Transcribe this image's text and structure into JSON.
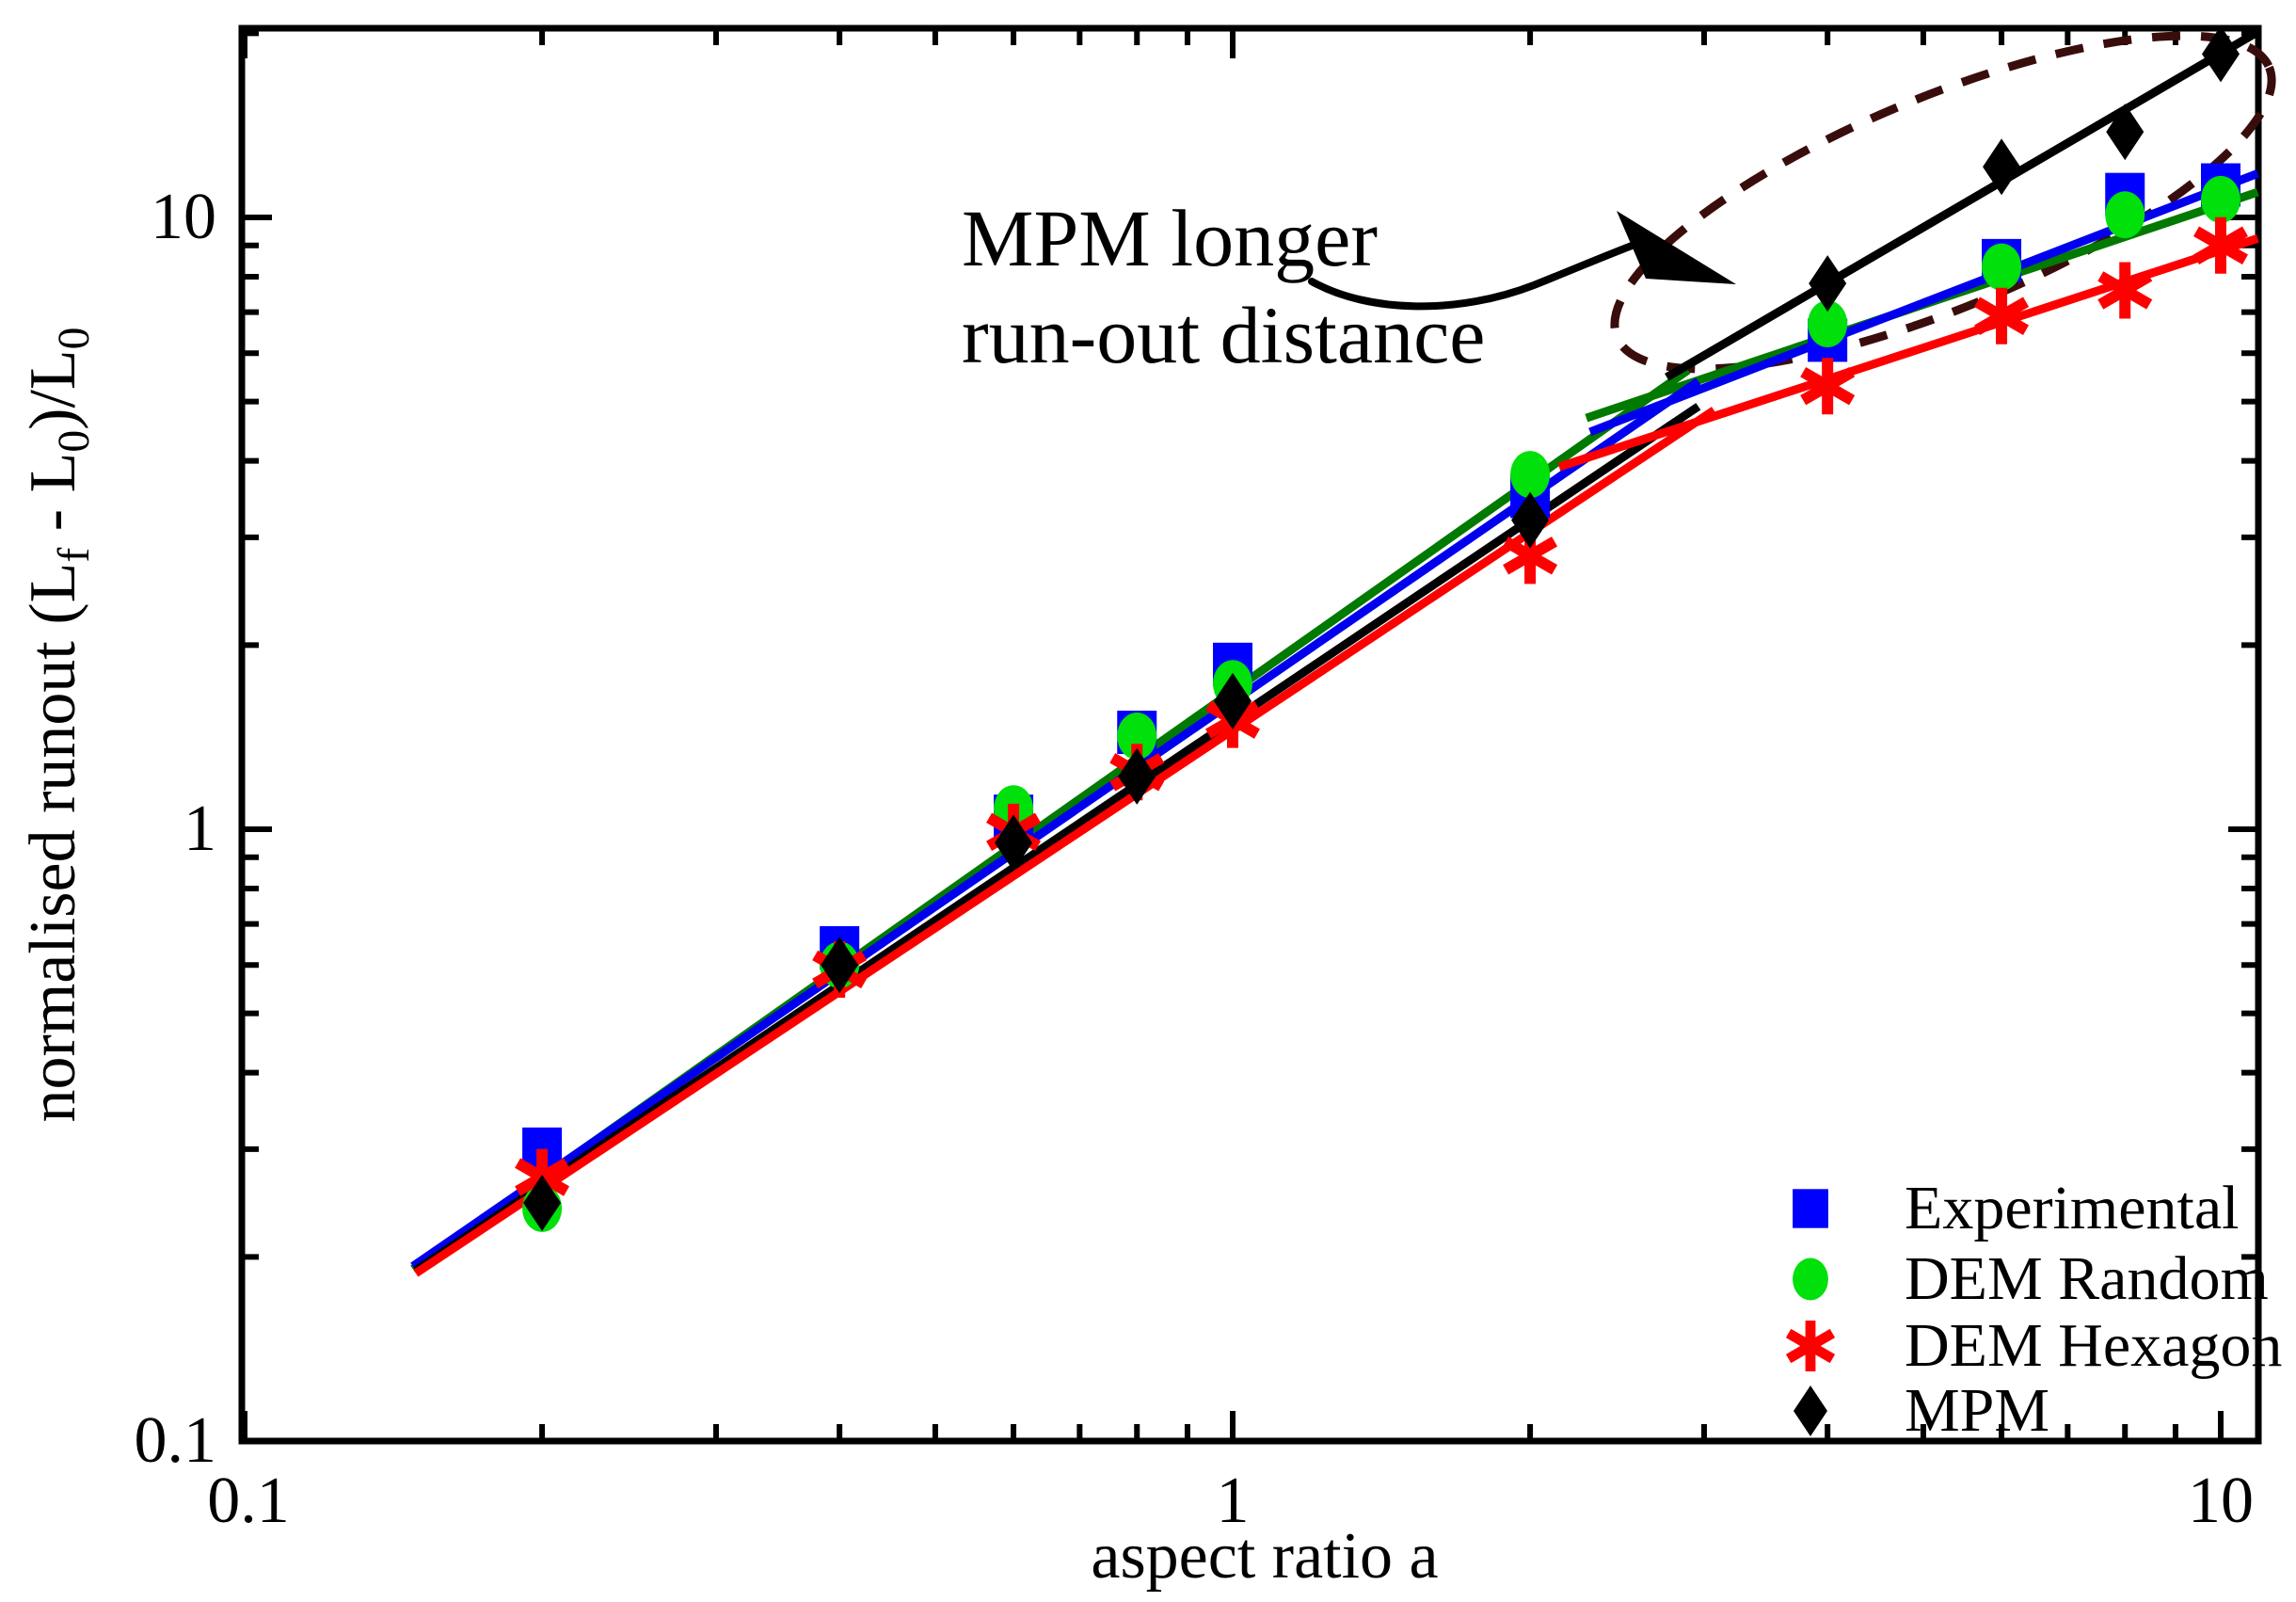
{
  "figure": {
    "background": "#ffffff",
    "kind": "log-log scatter with fit lines"
  },
  "annotation": {
    "line1": "MPM longer",
    "line2": "run-out distance",
    "arrow_color": "#000000",
    "ellipse_color": "#3a0d0d"
  },
  "axes": {
    "xlabel": "aspect ratio a",
    "ylabel": {
      "p1": "normalised runout (L",
      "sub1": "f",
      "p2": " - L",
      "sub2": "0",
      "p3": ")/L",
      "sub3": "0"
    },
    "x_ticks": [
      {
        "v": 0.1,
        "label": "0.1"
      },
      {
        "v": 1,
        "label": "1"
      },
      {
        "v": 10,
        "label": "10"
      }
    ],
    "y_ticks": [
      {
        "v": 0.1,
        "label": "0.1"
      },
      {
        "v": 1,
        "label": "1"
      },
      {
        "v": 10,
        "label": "10"
      }
    ],
    "xlim": [
      0.1,
      10.9
    ],
    "ylim": [
      0.1,
      20.3
    ],
    "x_scale": "log",
    "y_scale": "log",
    "grid": false
  },
  "chart_data": {
    "type": "scatter",
    "title": "",
    "xlabel": "aspect ratio a",
    "ylabel": "normalised runout (Lf - L0)/L0",
    "x_scale": "log",
    "y_scale": "log",
    "xlim": [
      0.1,
      10.9
    ],
    "ylim": [
      0.1,
      20.3
    ],
    "legend_position": "bottom-right",
    "grid": false,
    "x": [
      0.2,
      0.4,
      0.6,
      0.8,
      1.0,
      2.0,
      4.0,
      6.0,
      8.0,
      10.0
    ],
    "series": [
      {
        "name": "Experimental",
        "marker": "square",
        "marker_color": "#0000ff",
        "line_color": "#0000ee",
        "values": [
          0.3,
          0.64,
          1.05,
          1.44,
          1.86,
          3.5,
          6.3,
          8.5,
          10.9,
          11.3
        ],
        "fit_segments": [
          [
            [
              0.148,
              0.193
            ],
            [
              2.96,
              5.4
            ]
          ],
          [
            [
              2.3,
              4.46
            ],
            [
              10.9,
              11.8
            ]
          ]
        ]
      },
      {
        "name": "DEM Random",
        "marker": "circle",
        "marker_color": "#00e00a",
        "line_color": "#007a00",
        "values": [
          0.24,
          0.6,
          1.08,
          1.42,
          1.73,
          3.8,
          6.7,
          8.3,
          10.1,
          10.7
        ],
        "fit_segments": [
          [
            [
              0.148,
              0.191
            ],
            [
              2.89,
              5.63
            ]
          ],
          [
            [
              2.28,
              4.7
            ],
            [
              10.9,
              11.0
            ]
          ]
        ]
      },
      {
        "name": "DEM Hexagon",
        "marker": "asterisk",
        "marker_color": "#ff0000",
        "line_color": "#ff0000",
        "values": [
          0.27,
          0.59,
          0.99,
          1.24,
          1.51,
          2.8,
          5.3,
          6.9,
          7.6,
          9.0
        ],
        "fit_segments": [
          [
            [
              0.149,
              0.188
            ],
            [
              3.07,
              4.84
            ]
          ],
          [
            [
              2.14,
              3.91
            ],
            [
              10.9,
              9.24
            ]
          ]
        ]
      },
      {
        "name": "MPM",
        "marker": "diamond",
        "marker_color": "#000000",
        "line_color": "#000000",
        "values": [
          0.245,
          0.6,
          0.95,
          1.22,
          1.62,
          3.2,
          7.8,
          12.1,
          13.8,
          18.5
        ],
        "fit_segments": [
          [
            [
              0.149,
              0.19
            ],
            [
              2.96,
              4.91
            ]
          ],
          [
            [
              2.75,
              5.48
            ],
            [
              10.9,
              20.1
            ]
          ]
        ]
      }
    ],
    "highlight": {
      "label_series": "MPM",
      "shape": "dashed-ellipse"
    }
  },
  "legend": {
    "items": [
      {
        "label": "Experimental"
      },
      {
        "label": "DEM Random"
      },
      {
        "label": "DEM Hexagon"
      },
      {
        "label": "MPM"
      }
    ]
  }
}
